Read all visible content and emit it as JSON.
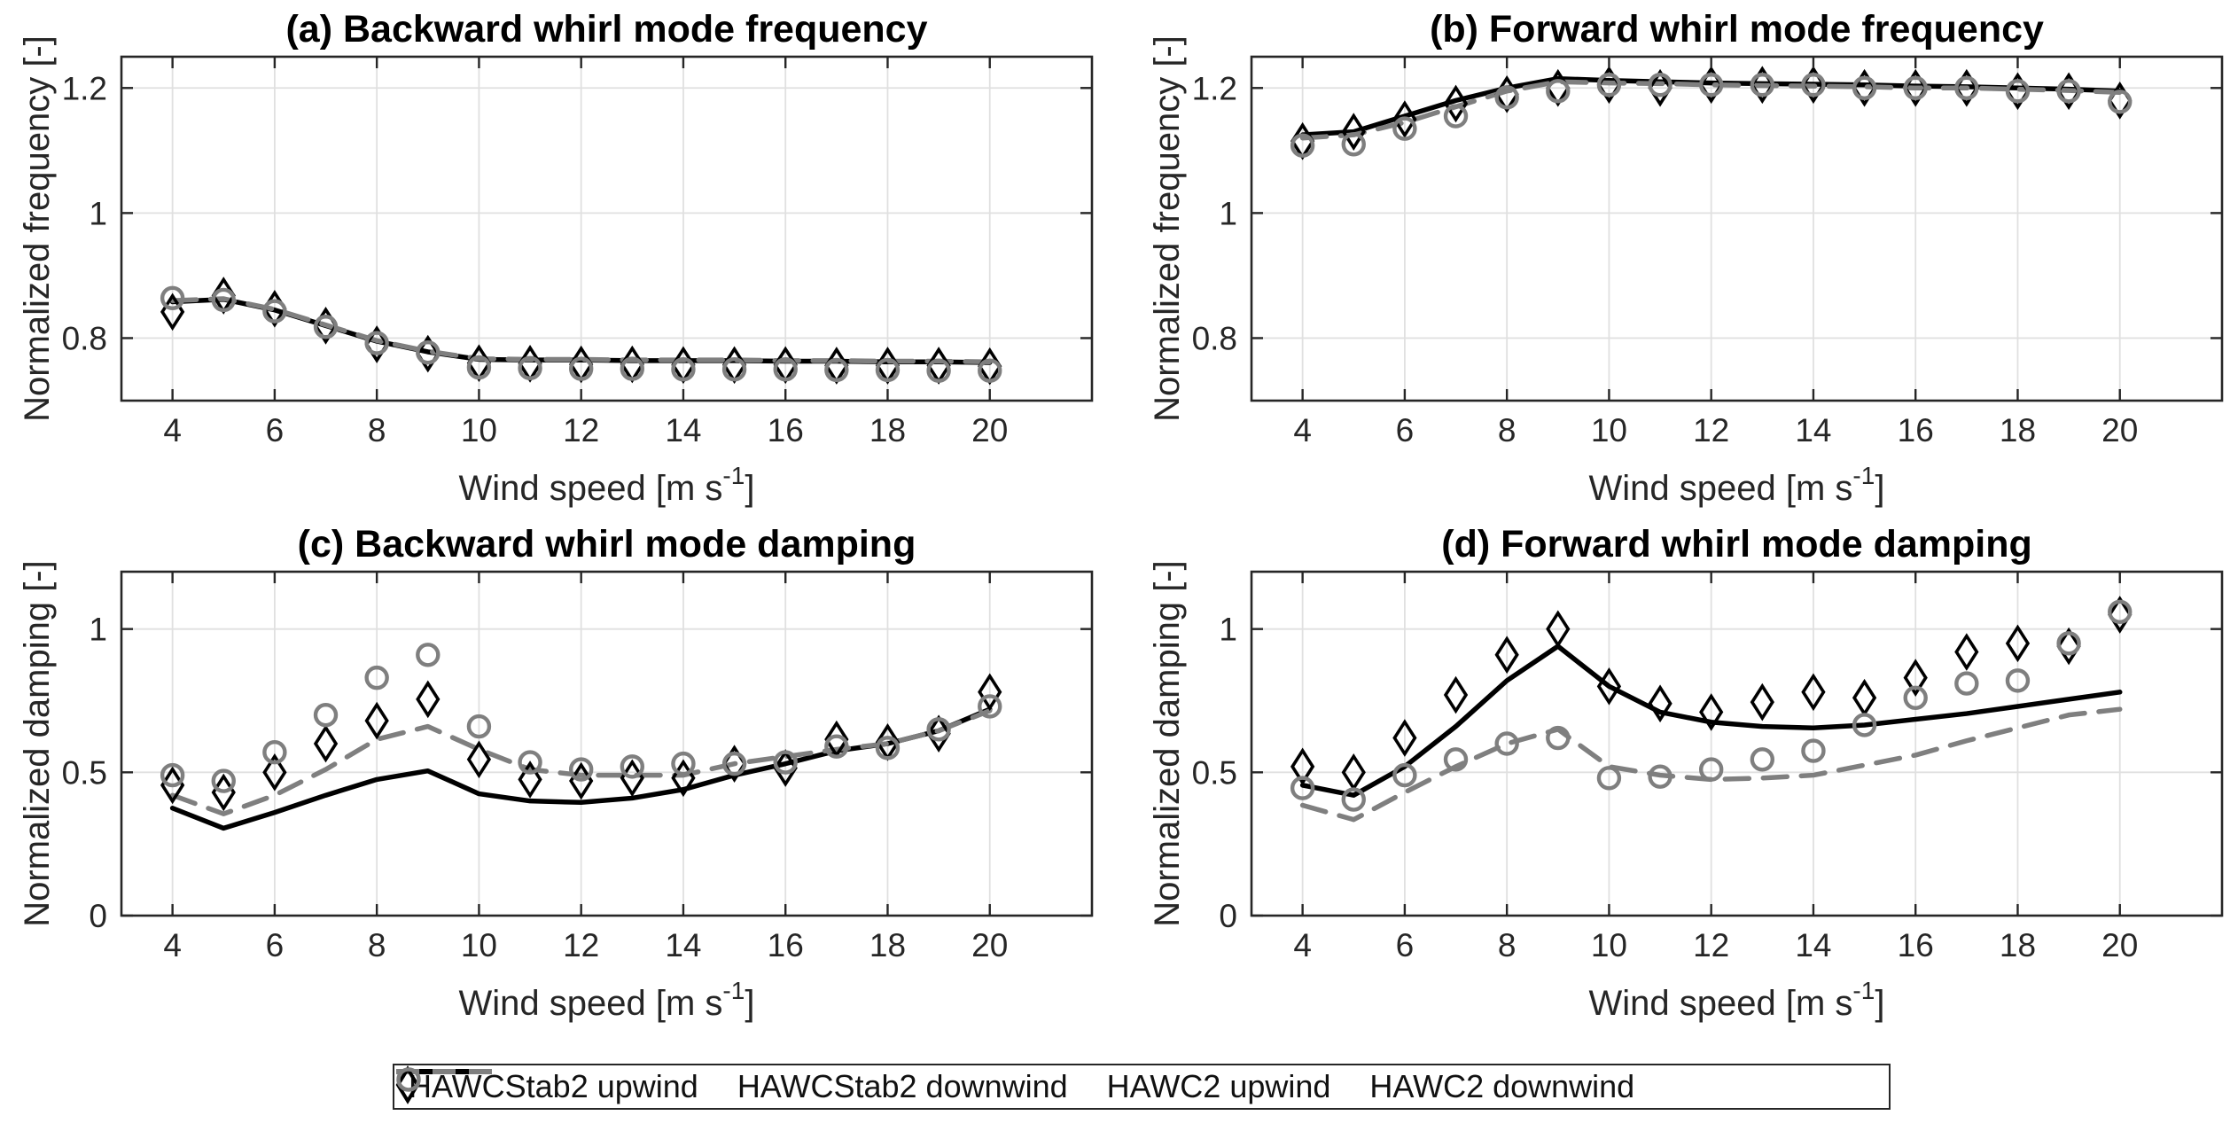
{
  "figure": {
    "colors": {
      "background": "#ffffff",
      "series_black": "#000000",
      "series_gray": "#7f7f7f",
      "grid": "#e0e0e0",
      "axis": "#262626",
      "text": "#262626",
      "title": "#000000"
    }
  },
  "legend": {
    "items": [
      {
        "label": "HAWCStab2 upwind",
        "marker": "solid-line",
        "color": "#000000"
      },
      {
        "label": "HAWCStab2 downwind",
        "marker": "dashed-line",
        "color": "#7f7f7f"
      },
      {
        "label": "HAWC2 upwind",
        "marker": "diamond",
        "color": "#000000"
      },
      {
        "label": "HAWC2 downwind",
        "marker": "circle",
        "color": "#7f7f7f"
      }
    ]
  },
  "chart_data": [
    {
      "id": "a",
      "type": "line",
      "title": "(a) Backward whirl mode frequency",
      "ylabel": "Normalized frequency [-]",
      "xlabel": {
        "prefix": "Wind speed [m s",
        "sup": "-1",
        "suffix": "]"
      },
      "xlim": [
        3,
        22
      ],
      "ylim": [
        0.7,
        1.25
      ],
      "xticks": [
        4,
        6,
        8,
        10,
        12,
        14,
        16,
        18,
        20
      ],
      "xtick_labels": [
        "4",
        "6",
        "8",
        "10",
        "12",
        "14",
        "16",
        "18",
        "20"
      ],
      "yticks": [
        0.8,
        1.0,
        1.2
      ],
      "ytick_labels": [
        "0.8",
        "1",
        "1.2"
      ],
      "grid": true,
      "x": [
        4,
        5,
        6,
        7,
        8,
        9,
        10,
        11,
        12,
        13,
        14,
        15,
        16,
        17,
        18,
        19,
        20
      ],
      "series": [
        {
          "name": "HAWCStab2 upwind",
          "style": "solid",
          "color": "#000000",
          "values": [
            0.858,
            0.862,
            0.845,
            0.82,
            0.795,
            0.778,
            0.766,
            0.765,
            0.765,
            0.764,
            0.764,
            0.764,
            0.763,
            0.763,
            0.762,
            0.762,
            0.761
          ]
        },
        {
          "name": "HAWCStab2 downwind",
          "style": "dashed",
          "color": "#7f7f7f",
          "values": [
            0.86,
            0.863,
            0.846,
            0.821,
            0.796,
            0.779,
            0.767,
            0.766,
            0.766,
            0.765,
            0.765,
            0.765,
            0.764,
            0.764,
            0.763,
            0.763,
            0.762
          ]
        },
        {
          "name": "HAWC2 upwind",
          "style": "diamond",
          "color": "#000000",
          "values": [
            0.842,
            0.868,
            0.847,
            0.82,
            0.79,
            0.775,
            0.76,
            0.759,
            0.758,
            0.758,
            0.757,
            0.757,
            0.757,
            0.756,
            0.756,
            0.756,
            0.755
          ]
        },
        {
          "name": "HAWC2 downwind",
          "style": "circle",
          "color": "#7f7f7f",
          "values": [
            0.864,
            0.861,
            0.843,
            0.818,
            0.792,
            0.777,
            0.753,
            0.752,
            0.751,
            0.751,
            0.75,
            0.75,
            0.75,
            0.749,
            0.749,
            0.748,
            0.748
          ]
        }
      ]
    },
    {
      "id": "b",
      "type": "line",
      "title": "(b) Forward whirl mode frequency",
      "ylabel": "Normalized frequency [-]",
      "xlabel": {
        "prefix": "Wind speed [m s",
        "sup": "-1",
        "suffix": "]"
      },
      "xlim": [
        3,
        22
      ],
      "ylim": [
        0.7,
        1.25
      ],
      "xticks": [
        4,
        6,
        8,
        10,
        12,
        14,
        16,
        18,
        20
      ],
      "xtick_labels": [
        "4",
        "6",
        "8",
        "10",
        "12",
        "14",
        "16",
        "18",
        "20"
      ],
      "yticks": [
        0.8,
        1.0,
        1.2
      ],
      "ytick_labels": [
        "0.8",
        "1",
        "1.2"
      ],
      "grid": true,
      "x": [
        4,
        5,
        6,
        7,
        8,
        9,
        10,
        11,
        12,
        13,
        14,
        15,
        16,
        17,
        18,
        19,
        20
      ],
      "series": [
        {
          "name": "HAWCStab2 upwind",
          "style": "solid",
          "color": "#000000",
          "values": [
            1.125,
            1.13,
            1.155,
            1.18,
            1.2,
            1.215,
            1.212,
            1.21,
            1.208,
            1.207,
            1.206,
            1.205,
            1.203,
            1.202,
            1.2,
            1.198,
            1.195
          ]
        },
        {
          "name": "HAWCStab2 downwind",
          "style": "dashed",
          "color": "#7f7f7f",
          "values": [
            1.12,
            1.125,
            1.145,
            1.17,
            1.195,
            1.21,
            1.208,
            1.207,
            1.205,
            1.204,
            1.203,
            1.202,
            1.2,
            1.2,
            1.198,
            1.196,
            1.193
          ]
        },
        {
          "name": "HAWC2 upwind",
          "style": "diamond",
          "color": "#000000",
          "values": [
            1.115,
            1.13,
            1.15,
            1.175,
            1.19,
            1.2,
            1.205,
            1.2,
            1.205,
            1.205,
            1.205,
            1.2,
            1.2,
            1.2,
            1.195,
            1.195,
            1.18
          ]
        },
        {
          "name": "HAWC2 downwind",
          "style": "circle",
          "color": "#7f7f7f",
          "values": [
            1.108,
            1.11,
            1.135,
            1.155,
            1.185,
            1.195,
            1.205,
            1.205,
            1.205,
            1.205,
            1.205,
            1.2,
            1.2,
            1.2,
            1.195,
            1.195,
            1.178
          ]
        }
      ]
    },
    {
      "id": "c",
      "type": "line",
      "title": "(c) Backward whirl mode damping",
      "ylabel": "Normalized damping [-]",
      "xlabel": {
        "prefix": "Wind speed [m s",
        "sup": "-1",
        "suffix": "]"
      },
      "xlim": [
        3,
        22
      ],
      "ylim": [
        0,
        1.2
      ],
      "xticks": [
        4,
        6,
        8,
        10,
        12,
        14,
        16,
        18,
        20
      ],
      "xtick_labels": [
        "4",
        "6",
        "8",
        "10",
        "12",
        "14",
        "16",
        "18",
        "20"
      ],
      "yticks": [
        0,
        0.5,
        1.0
      ],
      "ytick_labels": [
        "0",
        "0.5",
        "1"
      ],
      "grid": true,
      "x": [
        4,
        5,
        6,
        7,
        8,
        9,
        10,
        11,
        12,
        13,
        14,
        15,
        16,
        17,
        18,
        19,
        20
      ],
      "series": [
        {
          "name": "HAWCStab2 upwind",
          "style": "solid",
          "color": "#000000",
          "values": [
            0.375,
            0.305,
            0.36,
            0.42,
            0.475,
            0.505,
            0.425,
            0.4,
            0.395,
            0.41,
            0.44,
            0.49,
            0.53,
            0.575,
            0.6,
            0.645,
            0.72
          ]
        },
        {
          "name": "HAWCStab2 downwind",
          "style": "dashed",
          "color": "#7f7f7f",
          "values": [
            0.42,
            0.355,
            0.42,
            0.51,
            0.615,
            0.66,
            0.58,
            0.51,
            0.49,
            0.49,
            0.49,
            0.53,
            0.555,
            0.58,
            0.6,
            0.645,
            0.715
          ]
        },
        {
          "name": "HAWC2 upwind",
          "style": "diamond",
          "color": "#000000",
          "values": [
            0.455,
            0.43,
            0.5,
            0.6,
            0.68,
            0.755,
            0.545,
            0.475,
            0.47,
            0.48,
            0.48,
            0.53,
            0.515,
            0.615,
            0.605,
            0.635,
            0.78
          ]
        },
        {
          "name": "HAWC2 downwind",
          "style": "circle",
          "color": "#7f7f7f",
          "values": [
            0.49,
            0.47,
            0.57,
            0.7,
            0.83,
            0.91,
            0.66,
            0.535,
            0.51,
            0.52,
            0.53,
            0.53,
            0.535,
            0.59,
            0.585,
            0.65,
            0.73
          ]
        }
      ]
    },
    {
      "id": "d",
      "type": "line",
      "title": "(d) Forward whirl mode damping",
      "ylabel": "Normalized damping [-]",
      "xlabel": {
        "prefix": "Wind speed [m s",
        "sup": "-1",
        "suffix": "]"
      },
      "xlim": [
        3,
        22
      ],
      "ylim": [
        0,
        1.2
      ],
      "xticks": [
        4,
        6,
        8,
        10,
        12,
        14,
        16,
        18,
        20
      ],
      "xtick_labels": [
        "4",
        "6",
        "8",
        "10",
        "12",
        "14",
        "16",
        "18",
        "20"
      ],
      "yticks": [
        0,
        0.5,
        1.0
      ],
      "ytick_labels": [
        "0",
        "0.5",
        "1"
      ],
      "grid": true,
      "x": [
        4,
        5,
        6,
        7,
        8,
        9,
        10,
        11,
        12,
        13,
        14,
        15,
        16,
        17,
        18,
        19,
        20
      ],
      "series": [
        {
          "name": "HAWCStab2 upwind",
          "style": "solid",
          "color": "#000000",
          "values": [
            0.455,
            0.42,
            0.52,
            0.66,
            0.82,
            0.94,
            0.8,
            0.71,
            0.675,
            0.66,
            0.655,
            0.665,
            0.685,
            0.705,
            0.73,
            0.755,
            0.78
          ]
        },
        {
          "name": "HAWCStab2 downwind",
          "style": "dashed",
          "color": "#7f7f7f",
          "values": [
            0.385,
            0.335,
            0.43,
            0.52,
            0.6,
            0.65,
            0.52,
            0.49,
            0.475,
            0.48,
            0.49,
            0.525,
            0.56,
            0.61,
            0.655,
            0.7,
            0.72
          ]
        },
        {
          "name": "HAWC2 upwind",
          "style": "diamond",
          "color": "#000000",
          "values": [
            0.52,
            0.5,
            0.62,
            0.77,
            0.91,
            1.0,
            0.8,
            0.74,
            0.71,
            0.745,
            0.78,
            0.76,
            0.83,
            0.92,
            0.95,
            0.94,
            1.05
          ]
        },
        {
          "name": "HAWC2 downwind",
          "style": "circle",
          "color": "#7f7f7f",
          "values": [
            0.445,
            0.405,
            0.49,
            0.545,
            0.6,
            0.62,
            0.48,
            0.485,
            0.51,
            0.545,
            0.575,
            0.665,
            0.76,
            0.81,
            0.82,
            0.95,
            1.06
          ]
        }
      ]
    }
  ]
}
